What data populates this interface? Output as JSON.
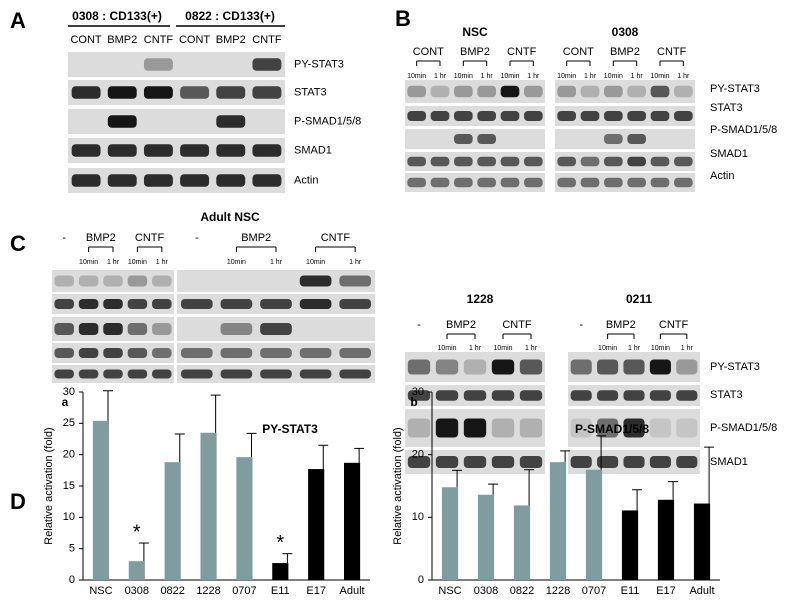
{
  "panels": {
    "A": {
      "letter": "A",
      "groups": [
        "0308 : CD133(+)",
        "0822 : CD133(+)"
      ],
      "lanes": [
        "CONT",
        "BMP2",
        "CNTF",
        "CONT",
        "BMP2",
        "CNTF"
      ],
      "rows": [
        "PY-STAT3",
        "STAT3",
        "P-SMAD1/5/8",
        "SMAD1",
        "Actin"
      ]
    },
    "B": {
      "letter": "B",
      "blots": [
        {
          "title": "NSC",
          "groups": [
            "CONT",
            "BMP2",
            "CNTF"
          ],
          "times": [
            "10min",
            "1 hr",
            "10min",
            "1 hr",
            "10min",
            "1 hr"
          ]
        },
        {
          "title": "0308",
          "groups": [
            "CONT",
            "BMP2",
            "CNTF"
          ],
          "times": [
            "10min",
            "1 hr",
            "10min",
            "1 hr",
            "10min",
            "1 hr"
          ]
        }
      ],
      "rows": [
        "PY-STAT3",
        "STAT3",
        "P-SMAD1/5/8",
        "SMAD1",
        "Actin"
      ]
    },
    "C": {
      "letter": "C",
      "blots": [
        {
          "groups": [
            "-",
            "BMP2",
            "CNTF"
          ],
          "times": [
            "10min",
            "1 hr",
            "10min",
            "1 hr"
          ]
        },
        {
          "title": "Adult NSC",
          "groups": [
            "-",
            "BMP2",
            "CNTF"
          ],
          "times": [
            "10min",
            "1 hr",
            "10min",
            "1 hr"
          ]
        },
        {
          "title": "1228",
          "groups": [
            "-",
            "BMP2",
            "CNTF"
          ],
          "times": [
            "10min",
            "1 hr",
            "10min",
            "1 hr"
          ]
        },
        {
          "title": "0211",
          "groups": [
            "-",
            "BMP2",
            "CNTF"
          ],
          "times": [
            "10min",
            "1 hr",
            "10min",
            "1 hr"
          ]
        }
      ],
      "rows": [
        "PY-STAT3",
        "STAT3",
        "P-SMAD1/5/8",
        "SMAD1"
      ]
    },
    "D": {
      "letter": "D"
    }
  },
  "chart_data": [
    {
      "type": "bar",
      "panel": "a",
      "title": "PY-STAT3",
      "y_label": "Relative activation (fold)",
      "categories": [
        "NSC",
        "0308",
        "0822",
        "1228",
        "0707",
        "E11",
        "E17",
        "Adult"
      ],
      "values": [
        25.4,
        3,
        18.8,
        23.5,
        19.6,
        2.7,
        17.7,
        18.7
      ],
      "errors": [
        4.8,
        2.9,
        4.5,
        6,
        3.8,
        1.5,
        3.8,
        2.3
      ],
      "colors": [
        "#7f9c9f",
        "#7f9c9f",
        "#7f9c9f",
        "#7f9c9f",
        "#7f9c9f",
        "#000000",
        "#000000",
        "#000000"
      ],
      "annotations": [
        {
          "text": "*",
          "category": "0308"
        },
        {
          "text": "*",
          "category": "E11"
        }
      ],
      "ylim": [
        0,
        30
      ],
      "yticks": [
        0,
        5,
        10,
        15,
        20,
        25,
        30
      ]
    },
    {
      "type": "bar",
      "panel": "b",
      "title": "P-SMAD1/5/8",
      "y_label": "Relative activation (fold)",
      "categories": [
        "NSC",
        "0308",
        "0822",
        "1228",
        "0707",
        "E11",
        "E17",
        "Adult"
      ],
      "values": [
        14.8,
        13.6,
        11.9,
        18.8,
        17.6,
        11.1,
        12.8,
        12.2
      ],
      "errors": [
        2.7,
        1.7,
        5.7,
        1.8,
        5.4,
        3.3,
        2.9,
        9
      ],
      "colors": [
        "#7f9c9f",
        "#7f9c9f",
        "#7f9c9f",
        "#7f9c9f",
        "#7f9c9f",
        "#000000",
        "#000000",
        "#000000"
      ],
      "ylim": [
        0,
        30
      ],
      "yticks": [
        0,
        10,
        20,
        30
      ]
    }
  ]
}
